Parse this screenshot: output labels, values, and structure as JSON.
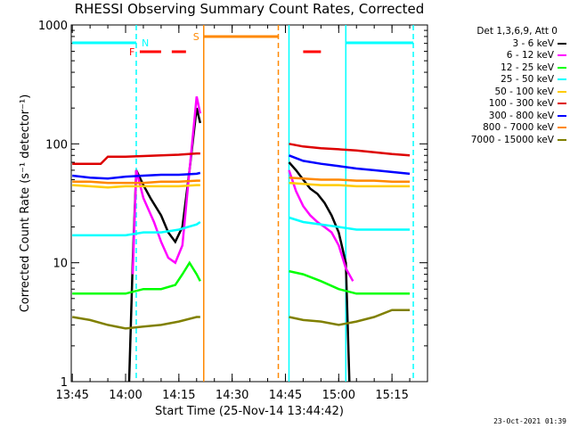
{
  "page": {
    "title": "RHESSI Observing Summary Count Rates, Corrected",
    "xlabel": "Start Time (25-Nov-14 13:44:42)",
    "ylabel": "Corrected Count Rate (s⁻¹ detector⁻¹)",
    "timestamp": "23-Oct-2021 01:39"
  },
  "legend": {
    "header": "Det 1,3,6,9, Att 0",
    "entries": [
      {
        "label": "3 - 6 keV",
        "color": "#000000"
      },
      {
        "label": "6 - 12 keV",
        "color": "#ff00ff"
      },
      {
        "label": "12 - 25 keV",
        "color": "#00ff00"
      },
      {
        "label": "25 - 50 keV",
        "color": "#00ffff"
      },
      {
        "label": "50 - 100 keV",
        "color": "#ffcc00"
      },
      {
        "label": "100 - 300 keV",
        "color": "#dd0000"
      },
      {
        "label": "300 - 800 keV",
        "color": "#0000ff"
      },
      {
        "label": "800 - 7000 keV",
        "color": "#ff8800"
      },
      {
        "label": "7000 - 15000 keV",
        "color": "#808000"
      }
    ]
  },
  "chart_data": {
    "type": "line",
    "title": "RHESSI Observing Summary Count Rates, Corrected",
    "xlabel": "Start Time (25-Nov-14 13:44:42)",
    "ylabel": "Corrected Count Rate (s⁻¹ detector⁻¹)",
    "yscale": "log",
    "ylim": [
      1,
      1000
    ],
    "xlim": [
      "13:44:42",
      "15:25:00"
    ],
    "x_ticks": [
      "13:45",
      "14:00",
      "14:15",
      "14:30",
      "14:45",
      "15:00",
      "15:15"
    ],
    "y_ticks": [
      "1",
      "10",
      "100",
      "1000"
    ],
    "grid": false,
    "legend_position": "right",
    "vertical_markers": [
      {
        "time": "14:03:00",
        "color": "#00ffff",
        "style": "dashed"
      },
      {
        "time": "14:22:00",
        "color": "#ff8800",
        "style": "solid"
      },
      {
        "time": "14:43:00",
        "color": "#ff8800",
        "style": "dashed"
      },
      {
        "time": "14:46:00",
        "color": "#00ffff",
        "style": "solid"
      },
      {
        "time": "15:02:00",
        "color": "#00ffff",
        "style": "solid"
      },
      {
        "time": "15:21:00",
        "color": "#00ffff",
        "style": "dashed"
      }
    ],
    "flag_bars": [
      {
        "label": "N",
        "color": "#00ffff",
        "segments": [
          [
            "13:45",
            "14:03"
          ],
          [
            "15:02",
            "15:21"
          ]
        ]
      },
      {
        "label": "F",
        "color": "#ff0000",
        "segments": [
          [
            "14:04",
            "14:10"
          ],
          [
            "14:13",
            "14:17"
          ],
          [
            "14:50",
            "14:55"
          ]
        ]
      },
      {
        "label": "S",
        "color": "#ff8800",
        "segments": [
          [
            "14:22",
            "14:43"
          ]
        ]
      }
    ],
    "series": [
      {
        "name": "3 - 6 keV",
        "color": "#000000",
        "segments": [
          {
            "x": [
              "14:01",
              "14:02",
              "14:03",
              "14:05",
              "14:07",
              "14:10",
              "14:12",
              "14:14",
              "14:16",
              "14:18",
              "14:20",
              "14:21"
            ],
            "y": [
              1,
              10,
              60,
              45,
              35,
              25,
              18,
              15,
              20,
              60,
              200,
              150
            ]
          },
          {
            "x": [
              "14:46",
              "14:48",
              "14:50",
              "14:52",
              "14:54",
              "14:56",
              "14:58",
              "15:00",
              "15:02",
              "15:03"
            ],
            "y": [
              70,
              60,
              50,
              42,
              38,
              32,
              25,
              18,
              10,
              1
            ]
          }
        ]
      },
      {
        "name": "6 - 12 keV",
        "color": "#ff00ff",
        "segments": [
          {
            "x": [
              "14:02",
              "14:03",
              "14:05",
              "14:08",
              "14:10",
              "14:12",
              "14:14",
              "14:16",
              "14:18",
              "14:20",
              "14:21"
            ],
            "y": [
              8,
              60,
              35,
              22,
              15,
              11,
              10,
              14,
              60,
              250,
              180
            ]
          },
          {
            "x": [
              "14:46",
              "14:48",
              "14:50",
              "14:52",
              "14:54",
              "14:56",
              "14:58",
              "15:00",
              "15:02",
              "15:04"
            ],
            "y": [
              60,
              40,
              30,
              25,
              22,
              20,
              18,
              14,
              9,
              7
            ]
          }
        ]
      },
      {
        "name": "12 - 25 keV",
        "color": "#00ff00",
        "segments": [
          {
            "x": [
              "13:45",
              "13:50",
              "13:55",
              "14:00",
              "14:05",
              "14:10",
              "14:14",
              "14:16",
              "14:18",
              "14:20",
              "14:21"
            ],
            "y": [
              5.5,
              5.5,
              5.5,
              5.5,
              6.0,
              6.0,
              6.5,
              8.0,
              10.0,
              8.0,
              7.0
            ]
          },
          {
            "x": [
              "14:46",
              "14:50",
              "14:55",
              "15:00",
              "15:05",
              "15:10",
              "15:15",
              "15:20"
            ],
            "y": [
              8.5,
              8.0,
              7.0,
              6.0,
              5.5,
              5.5,
              5.5,
              5.5
            ]
          }
        ]
      },
      {
        "name": "25 - 50 keV",
        "color": "#00ffff",
        "segments": [
          {
            "x": [
              "13:45",
              "13:50",
              "13:55",
              "14:00",
              "14:05",
              "14:10",
              "14:15",
              "14:20",
              "14:21"
            ],
            "y": [
              17,
              17,
              17,
              17,
              18,
              18,
              19,
              21,
              22
            ]
          },
          {
            "x": [
              "14:46",
              "14:50",
              "14:55",
              "15:00",
              "15:05",
              "15:10",
              "15:15",
              "15:20"
            ],
            "y": [
              24,
              22,
              21,
              20,
              19,
              19,
              19,
              19
            ]
          }
        ]
      },
      {
        "name": "50 - 100 keV",
        "color": "#ffcc00",
        "segments": [
          {
            "x": [
              "13:45",
              "13:50",
              "13:55",
              "14:00",
              "14:05",
              "14:10",
              "14:15",
              "14:20",
              "14:21"
            ],
            "y": [
              45,
              44,
              43,
              44,
              44,
              44,
              44,
              45,
              45
            ]
          },
          {
            "x": [
              "14:46",
              "14:50",
              "14:55",
              "15:00",
              "15:05",
              "15:10",
              "15:15",
              "15:20"
            ],
            "y": [
              47,
              46,
              45,
              45,
              44,
              44,
              44,
              44
            ]
          }
        ]
      },
      {
        "name": "100 - 300 keV",
        "color": "#dd0000",
        "segments": [
          {
            "x": [
              "13:45",
              "13:50",
              "13:53",
              "13:55",
              "14:00",
              "14:05",
              "14:10",
              "14:15",
              "14:20",
              "14:21"
            ],
            "y": [
              68,
              68,
              68,
              78,
              78,
              79,
              80,
              81,
              83,
              83
            ]
          },
          {
            "x": [
              "14:46",
              "14:50",
              "14:55",
              "15:00",
              "15:05",
              "15:10",
              "15:15",
              "15:20"
            ],
            "y": [
              100,
              95,
              92,
              90,
              88,
              85,
              82,
              80
            ]
          }
        ]
      },
      {
        "name": "300 - 800 keV",
        "color": "#0000ff",
        "segments": [
          {
            "x": [
              "13:45",
              "13:50",
              "13:55",
              "14:00",
              "14:05",
              "14:10",
              "14:15",
              "14:20",
              "14:21"
            ],
            "y": [
              54,
              52,
              51,
              53,
              54,
              55,
              55,
              56,
              57
            ]
          },
          {
            "x": [
              "14:46",
              "14:50",
              "14:55",
              "15:00",
              "15:05",
              "15:10",
              "15:15",
              "15:20"
            ],
            "y": [
              80,
              72,
              68,
              65,
              62,
              60,
              58,
              56
            ]
          }
        ]
      },
      {
        "name": "800 - 7000 keV",
        "color": "#ff8800",
        "segments": [
          {
            "x": [
              "13:45",
              "13:50",
              "13:55",
              "14:00",
              "14:05",
              "14:10",
              "14:15",
              "14:20",
              "14:21"
            ],
            "y": [
              48,
              48,
              47,
              47,
              47,
              48,
              48,
              49,
              49
            ]
          },
          {
            "x": [
              "14:46",
              "14:50",
              "14:55",
              "15:00",
              "15:05",
              "15:10",
              "15:15",
              "15:20"
            ],
            "y": [
              52,
              51,
              50,
              50,
              49,
              49,
              48,
              48
            ]
          }
        ]
      },
      {
        "name": "7000 - 15000 keV",
        "color": "#808000",
        "segments": [
          {
            "x": [
              "13:45",
              "13:50",
              "13:55",
              "14:00",
              "14:05",
              "14:10",
              "14:15",
              "14:20",
              "14:21"
            ],
            "y": [
              3.5,
              3.3,
              3.0,
              2.8,
              2.9,
              3.0,
              3.2,
              3.5,
              3.5
            ]
          },
          {
            "x": [
              "14:46",
              "14:50",
              "14:55",
              "15:00",
              "15:05",
              "15:10",
              "15:15",
              "15:20"
            ],
            "y": [
              3.5,
              3.3,
              3.2,
              3.0,
              3.2,
              3.5,
              4.0,
              4.0
            ]
          }
        ]
      }
    ]
  }
}
